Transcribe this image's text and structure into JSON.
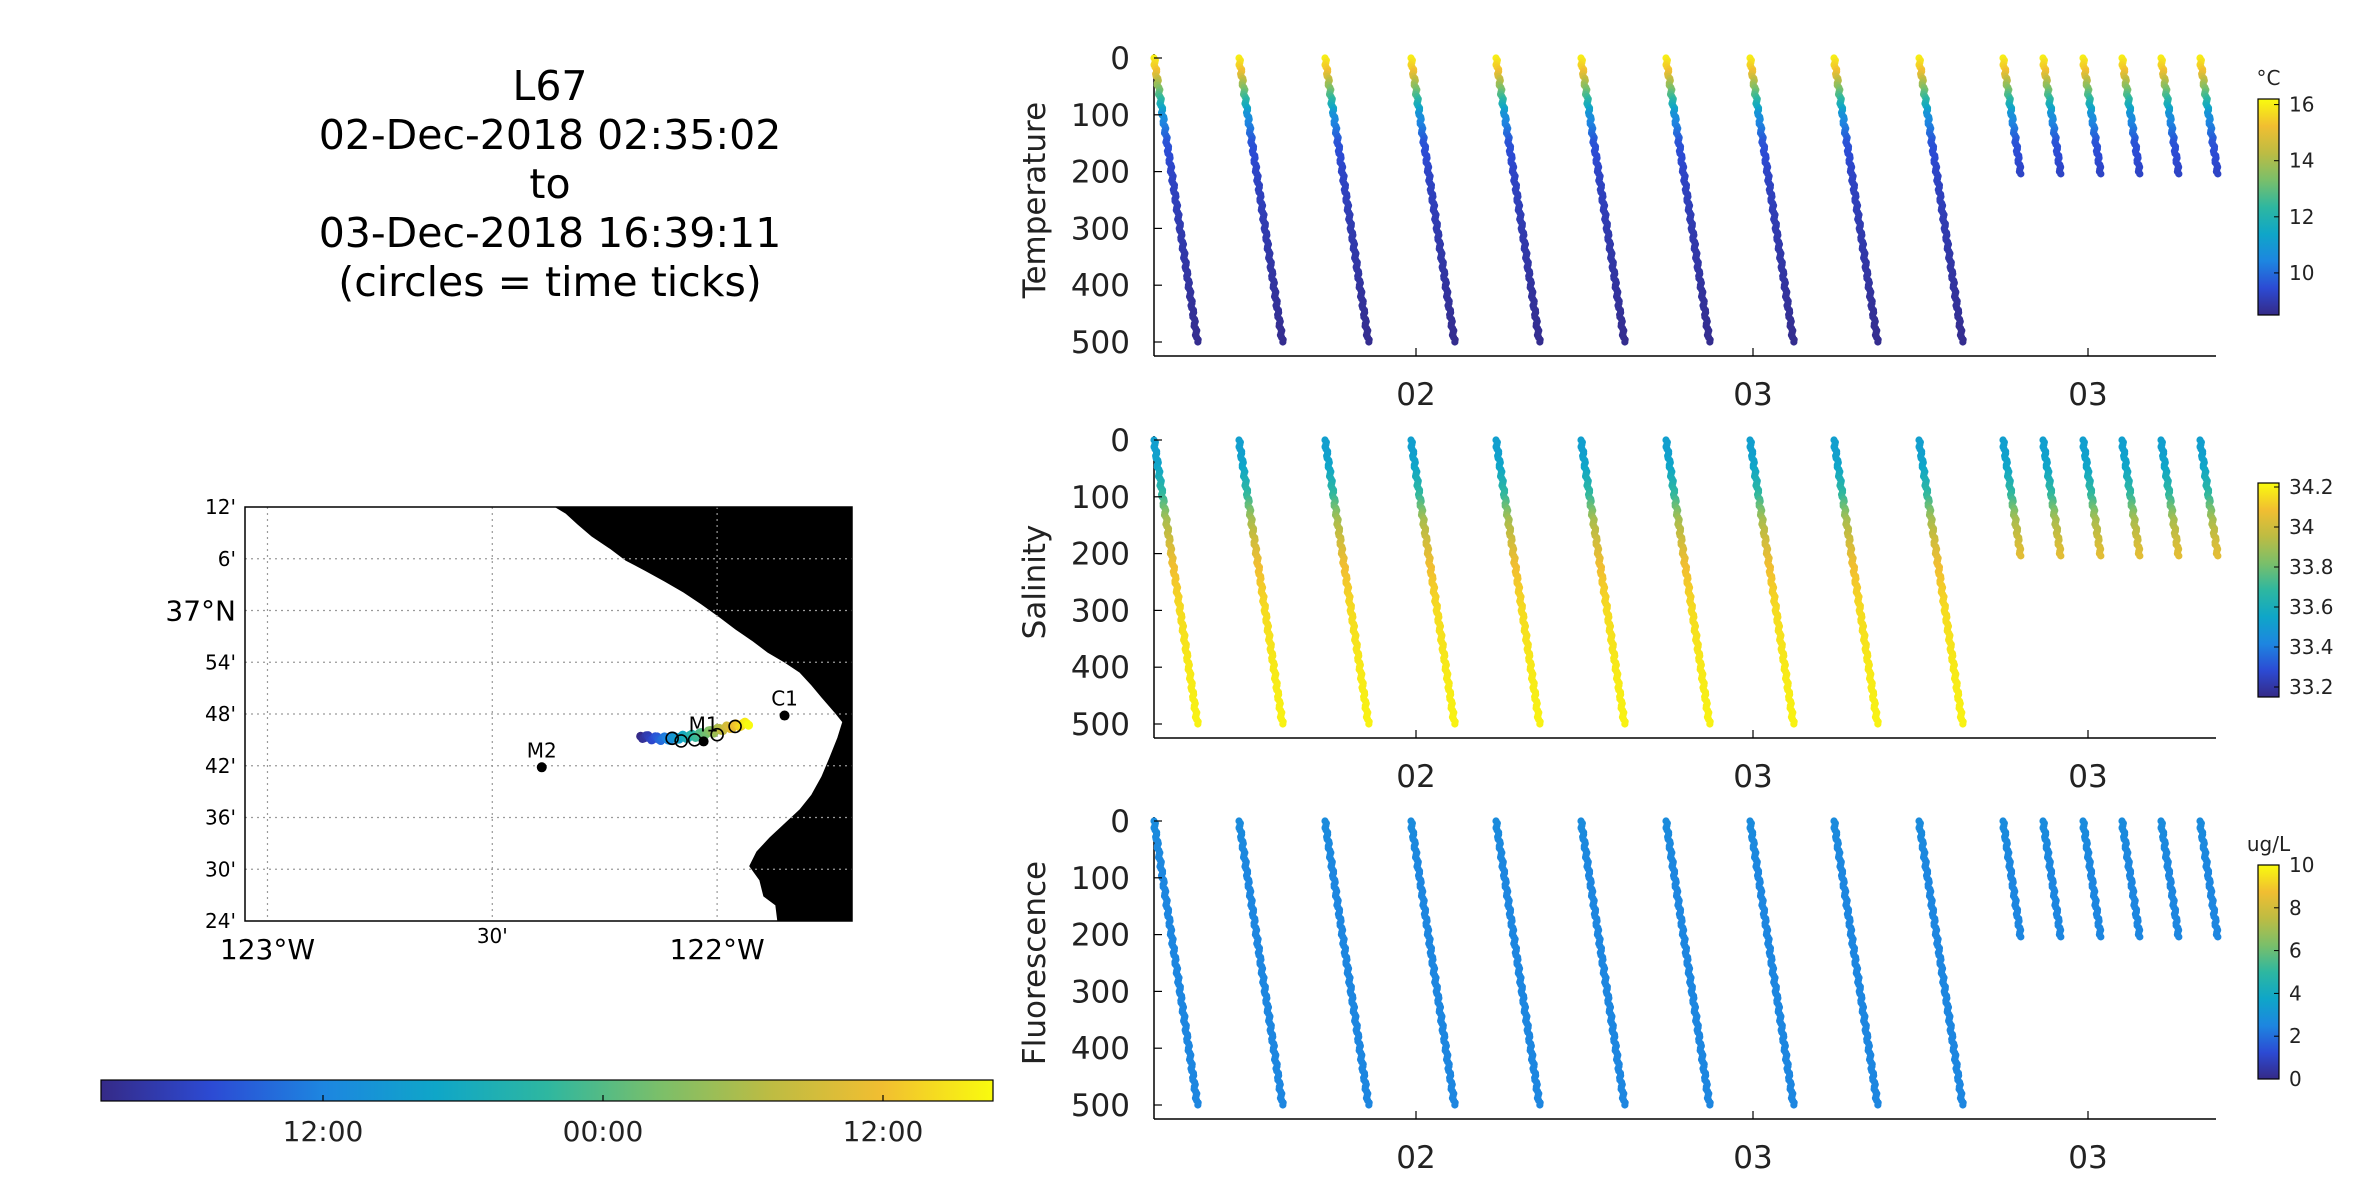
{
  "title_lines": [
    "L67",
    "02-Dec-2018 02:35:02",
    "to",
    "03-Dec-2018 16:39:11",
    "(circles = time ticks)"
  ],
  "map": {
    "lon_ticks": [
      {
        "lon": -123.0,
        "label": "123°W"
      },
      {
        "lon": -122.5,
        "label": "30'"
      },
      {
        "lon": -122.0,
        "label": "122°W"
      }
    ],
    "lat_ticks": [
      {
        "lat": 37.2,
        "label": "12'"
      },
      {
        "lat": 37.1,
        "label": "6'"
      },
      {
        "lat": 37.0,
        "label": "37°N"
      },
      {
        "lat": 36.9,
        "label": "54'"
      },
      {
        "lat": 36.8,
        "label": "48'"
      },
      {
        "lat": 36.7,
        "label": "42'"
      },
      {
        "lat": 36.6,
        "label": "36'"
      },
      {
        "lat": 36.5,
        "label": "30'"
      },
      {
        "lat": 36.4,
        "label": "24'"
      }
    ],
    "stations": [
      {
        "name": "C1",
        "lon": -121.85,
        "lat": 36.797
      },
      {
        "name": "M2",
        "lon": -122.39,
        "lat": 36.697
      },
      {
        "name": "M1",
        "lon": -122.03,
        "lat": 36.747
      }
    ],
    "colors": {
      "land": "#e6e6e6",
      "coast": "#000000",
      "grid": "#9a9a9a"
    }
  },
  "time_colorbar": {
    "tick_labels": [
      "12:00",
      "00:00",
      "12:00"
    ],
    "colormap": [
      "#352a87",
      "#2c4bd4",
      "#1d86e0",
      "#0fa6c8",
      "#2eb7a0",
      "#7abf6a",
      "#bdbc43",
      "#f1be31",
      "#f9fb0e"
    ]
  },
  "chart_data": [
    {
      "type": "scatter",
      "title": "",
      "xlabel": "",
      "ylabel": "Temperature",
      "ylim": [
        500,
        0
      ],
      "yticks": [
        0,
        100,
        200,
        300,
        400,
        500
      ],
      "xtick_labels": [
        "02",
        "03",
        "03"
      ],
      "colorbar": {
        "unit": "°C",
        "range": [
          8.5,
          16.2
        ],
        "ticks": [
          10,
          12,
          14,
          16
        ]
      },
      "profile": {
        "depth": [
          0,
          25,
          50,
          75,
          100,
          150,
          200,
          300,
          400,
          500
        ],
        "values": [
          16.0,
          15.2,
          13.6,
          12.2,
          10.8,
          9.6,
          9.3,
          9.0,
          8.8,
          8.6
        ]
      },
      "dives": {
        "count_full": 10,
        "max_depth_full": 500,
        "count_shallow": 6,
        "max_depth_shallow": 205
      }
    },
    {
      "type": "scatter",
      "title": "",
      "xlabel": "",
      "ylabel": "Salinity",
      "ylim": [
        500,
        0
      ],
      "yticks": [
        0,
        100,
        200,
        300,
        400,
        500
      ],
      "xtick_labels": [
        "02",
        "03",
        "03"
      ],
      "colorbar": {
        "unit": "",
        "range": [
          33.15,
          34.22
        ],
        "ticks": [
          33.2,
          33.4,
          33.6,
          33.8,
          34.0,
          34.2
        ]
      },
      "colorbar_tick_labels": [
        "33.2",
        "33.4",
        "33.6",
        "33.8",
        "34",
        "34.2"
      ],
      "profile": {
        "depth": [
          0,
          20,
          50,
          100,
          140,
          180,
          220,
          300,
          400,
          500
        ],
        "values": [
          33.52,
          33.52,
          33.55,
          33.7,
          33.9,
          34.0,
          34.08,
          34.15,
          34.18,
          34.2
        ]
      },
      "dives": {
        "count_full": 10,
        "max_depth_full": 500,
        "count_shallow": 6,
        "max_depth_shallow": 205
      }
    },
    {
      "type": "scatter",
      "title": "",
      "xlabel": "",
      "ylabel": "Fluorescence",
      "ylim": [
        500,
        0
      ],
      "yticks": [
        0,
        100,
        200,
        300,
        400,
        500
      ],
      "xtick_labels": [
        "02",
        "03",
        "03"
      ],
      "colorbar": {
        "unit": "ug/L",
        "range": [
          0,
          10
        ],
        "ticks": [
          0,
          2,
          4,
          6,
          8,
          10
        ]
      },
      "profile": {
        "depth": [
          0,
          50,
          100,
          200,
          300,
          400,
          500
        ],
        "values": [
          2.7,
          2.6,
          2.5,
          2.5,
          2.5,
          2.5,
          2.5
        ]
      },
      "dives": {
        "count_full": 10,
        "max_depth_full": 500,
        "count_shallow": 6,
        "max_depth_shallow": 205
      }
    }
  ]
}
